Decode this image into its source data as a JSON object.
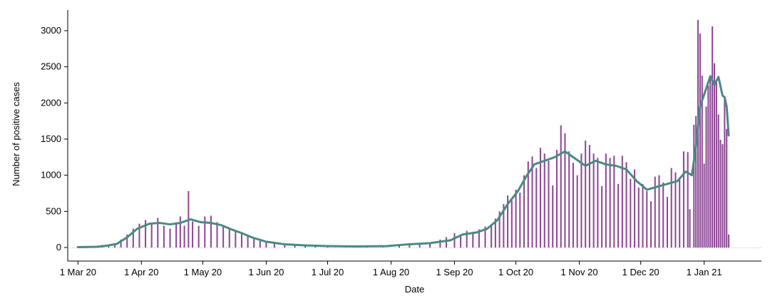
{
  "chart_data": {
    "type": "bar",
    "title": "",
    "xlabel": "Date",
    "ylabel": "Number of positive cases",
    "ylim": [
      0,
      3300
    ],
    "y_ticks": [
      0,
      500,
      1000,
      1500,
      2000,
      2500,
      3000
    ],
    "x_ticks": [
      {
        "date": "2020-03-01",
        "label": "1 Mar 20"
      },
      {
        "date": "2020-04-01",
        "label": "1 Apr 20"
      },
      {
        "date": "2020-05-01",
        "label": "1 May 20"
      },
      {
        "date": "2020-06-01",
        "label": "1 Jun 20"
      },
      {
        "date": "2020-07-01",
        "label": "1 Jul 20"
      },
      {
        "date": "2020-08-01",
        "label": "1 Aug 20"
      },
      {
        "date": "2020-09-01",
        "label": "1 Sep 20"
      },
      {
        "date": "2020-10-01",
        "label": "1 Oct 20"
      },
      {
        "date": "2020-11-01",
        "label": "1 Nov 20"
      },
      {
        "date": "2020-12-01",
        "label": "1 Dec 20"
      },
      {
        "date": "2021-01-01",
        "label": "1 Jan 21"
      }
    ],
    "xlim": [
      "2020-02-25",
      "2021-01-29"
    ],
    "grid": false,
    "colors": {
      "bars": "#8e4a96",
      "trend": "#4a8a82",
      "baseline": "#b5b5b5"
    },
    "series": [
      {
        "type": "bar",
        "points": [
          [
            "2020-03-05",
            10
          ],
          [
            "2020-03-10",
            25
          ],
          [
            "2020-03-13",
            35
          ],
          [
            "2020-03-16",
            40
          ],
          [
            "2020-03-19",
            60
          ],
          [
            "2020-03-22",
            110
          ],
          [
            "2020-03-25",
            180
          ],
          [
            "2020-03-28",
            260
          ],
          [
            "2020-03-31",
            330
          ],
          [
            "2020-04-03",
            380
          ],
          [
            "2020-04-06",
            320
          ],
          [
            "2020-04-09",
            410
          ],
          [
            "2020-04-12",
            300
          ],
          [
            "2020-04-15",
            260
          ],
          [
            "2020-04-18",
            350
          ],
          [
            "2020-04-20",
            430
          ],
          [
            "2020-04-22",
            300
          ],
          [
            "2020-04-24",
            780
          ],
          [
            "2020-04-26",
            360
          ],
          [
            "2020-04-29",
            300
          ],
          [
            "2020-05-02",
            430
          ],
          [
            "2020-05-05",
            440
          ],
          [
            "2020-05-08",
            350
          ],
          [
            "2020-05-11",
            310
          ],
          [
            "2020-05-14",
            250
          ],
          [
            "2020-05-17",
            240
          ],
          [
            "2020-05-20",
            200
          ],
          [
            "2020-05-23",
            170
          ],
          [
            "2020-05-26",
            130
          ],
          [
            "2020-05-29",
            100
          ],
          [
            "2020-06-01",
            80
          ],
          [
            "2020-06-05",
            60
          ],
          [
            "2020-06-10",
            40
          ],
          [
            "2020-06-15",
            35
          ],
          [
            "2020-06-20",
            30
          ],
          [
            "2020-06-25",
            25
          ],
          [
            "2020-07-01",
            20
          ],
          [
            "2020-07-10",
            15
          ],
          [
            "2020-07-20",
            15
          ],
          [
            "2020-07-28",
            20
          ],
          [
            "2020-08-05",
            40
          ],
          [
            "2020-08-10",
            60
          ],
          [
            "2020-08-15",
            55
          ],
          [
            "2020-08-20",
            70
          ],
          [
            "2020-08-25",
            110
          ],
          [
            "2020-08-28",
            145
          ],
          [
            "2020-09-01",
            200
          ],
          [
            "2020-09-04",
            160
          ],
          [
            "2020-09-07",
            230
          ],
          [
            "2020-09-10",
            210
          ],
          [
            "2020-09-13",
            250
          ],
          [
            "2020-09-16",
            290
          ],
          [
            "2020-09-19",
            320
          ],
          [
            "2020-09-21",
            400
          ],
          [
            "2020-09-23",
            500
          ],
          [
            "2020-09-25",
            600
          ],
          [
            "2020-09-27",
            720
          ],
          [
            "2020-09-29",
            650
          ],
          [
            "2020-10-01",
            800
          ],
          [
            "2020-10-03",
            760
          ],
          [
            "2020-10-05",
            1000
          ],
          [
            "2020-10-07",
            1190
          ],
          [
            "2020-10-09",
            1260
          ],
          [
            "2020-10-11",
            1100
          ],
          [
            "2020-10-13",
            1380
          ],
          [
            "2020-10-15",
            1300
          ],
          [
            "2020-10-17",
            1200
          ],
          [
            "2020-10-19",
            860
          ],
          [
            "2020-10-21",
            1350
          ],
          [
            "2020-10-23",
            1690
          ],
          [
            "2020-10-25",
            1580
          ],
          [
            "2020-10-27",
            1330
          ],
          [
            "2020-10-29",
            1170
          ],
          [
            "2020-10-31",
            1000
          ],
          [
            "2020-11-02",
            1300
          ],
          [
            "2020-11-04",
            1480
          ],
          [
            "2020-11-06",
            1420
          ],
          [
            "2020-11-08",
            1300
          ],
          [
            "2020-11-10",
            1240
          ],
          [
            "2020-11-12",
            850
          ],
          [
            "2020-11-14",
            1300
          ],
          [
            "2020-11-16",
            1240
          ],
          [
            "2020-11-18",
            1270
          ],
          [
            "2020-11-20",
            880
          ],
          [
            "2020-11-22",
            1270
          ],
          [
            "2020-11-24",
            1180
          ],
          [
            "2020-11-26",
            950
          ],
          [
            "2020-11-28",
            1080
          ],
          [
            "2020-11-30",
            830
          ],
          [
            "2020-12-02",
            880
          ],
          [
            "2020-12-04",
            780
          ],
          [
            "2020-12-06",
            640
          ],
          [
            "2020-12-08",
            980
          ],
          [
            "2020-12-10",
            1000
          ],
          [
            "2020-12-12",
            900
          ],
          [
            "2020-12-14",
            700
          ],
          [
            "2020-12-16",
            1100
          ],
          [
            "2020-12-18",
            1040
          ],
          [
            "2020-12-20",
            940
          ],
          [
            "2020-12-22",
            1330
          ],
          [
            "2020-12-24",
            1320
          ],
          [
            "2020-12-25",
            530
          ],
          [
            "2020-12-27",
            1700
          ],
          [
            "2020-12-28",
            1820
          ],
          [
            "2020-12-29",
            3150
          ],
          [
            "2020-12-30",
            2960
          ],
          [
            "2020-12-31",
            2380
          ],
          [
            "2021-01-01",
            1160
          ],
          [
            "2021-01-02",
            1950
          ],
          [
            "2021-01-03",
            2240
          ],
          [
            "2021-01-04",
            2370
          ],
          [
            "2021-01-05",
            3060
          ],
          [
            "2021-01-06",
            2550
          ],
          [
            "2021-01-07",
            2300
          ],
          [
            "2021-01-08",
            1840
          ],
          [
            "2021-01-09",
            1490
          ],
          [
            "2021-01-10",
            1430
          ],
          [
            "2021-01-11",
            2050
          ],
          [
            "2021-01-12",
            1640
          ],
          [
            "2021-01-13",
            180
          ]
        ]
      },
      {
        "type": "line",
        "points": [
          [
            "2020-03-01",
            5
          ],
          [
            "2020-03-10",
            10
          ],
          [
            "2020-03-15",
            25
          ],
          [
            "2020-03-20",
            50
          ],
          [
            "2020-03-25",
            140
          ],
          [
            "2020-03-30",
            260
          ],
          [
            "2020-04-05",
            330
          ],
          [
            "2020-04-10",
            340
          ],
          [
            "2020-04-15",
            320
          ],
          [
            "2020-04-20",
            340
          ],
          [
            "2020-04-25",
            390
          ],
          [
            "2020-04-30",
            350
          ],
          [
            "2020-05-05",
            340
          ],
          [
            "2020-05-10",
            310
          ],
          [
            "2020-05-15",
            250
          ],
          [
            "2020-05-20",
            200
          ],
          [
            "2020-05-25",
            140
          ],
          [
            "2020-06-01",
            80
          ],
          [
            "2020-06-10",
            45
          ],
          [
            "2020-06-20",
            30
          ],
          [
            "2020-07-01",
            20
          ],
          [
            "2020-07-15",
            15
          ],
          [
            "2020-07-30",
            20
          ],
          [
            "2020-08-10",
            45
          ],
          [
            "2020-08-20",
            60
          ],
          [
            "2020-08-30",
            100
          ],
          [
            "2020-09-05",
            180
          ],
          [
            "2020-09-12",
            210
          ],
          [
            "2020-09-17",
            260
          ],
          [
            "2020-09-22",
            380
          ],
          [
            "2020-09-27",
            600
          ],
          [
            "2020-10-02",
            780
          ],
          [
            "2020-10-06",
            980
          ],
          [
            "2020-10-10",
            1150
          ],
          [
            "2020-10-15",
            1200
          ],
          [
            "2020-10-20",
            1250
          ],
          [
            "2020-10-25",
            1330
          ],
          [
            "2020-10-30",
            1230
          ],
          [
            "2020-11-04",
            1130
          ],
          [
            "2020-11-09",
            1200
          ],
          [
            "2020-11-14",
            1150
          ],
          [
            "2020-11-19",
            1130
          ],
          [
            "2020-11-24",
            1080
          ],
          [
            "2020-11-29",
            920
          ],
          [
            "2020-12-04",
            800
          ],
          [
            "2020-12-09",
            840
          ],
          [
            "2020-12-14",
            880
          ],
          [
            "2020-12-19",
            920
          ],
          [
            "2020-12-23",
            1050
          ],
          [
            "2020-12-26",
            1000
          ],
          [
            "2020-12-28",
            1400
          ],
          [
            "2020-12-30",
            1950
          ],
          [
            "2021-01-02",
            2200
          ],
          [
            "2021-01-04",
            2370
          ],
          [
            "2021-01-06",
            2250
          ],
          [
            "2021-01-08",
            2360
          ],
          [
            "2021-01-10",
            2100
          ],
          [
            "2021-01-11",
            2080
          ],
          [
            "2021-01-12",
            1950
          ],
          [
            "2021-01-13",
            1550
          ]
        ]
      }
    ]
  }
}
